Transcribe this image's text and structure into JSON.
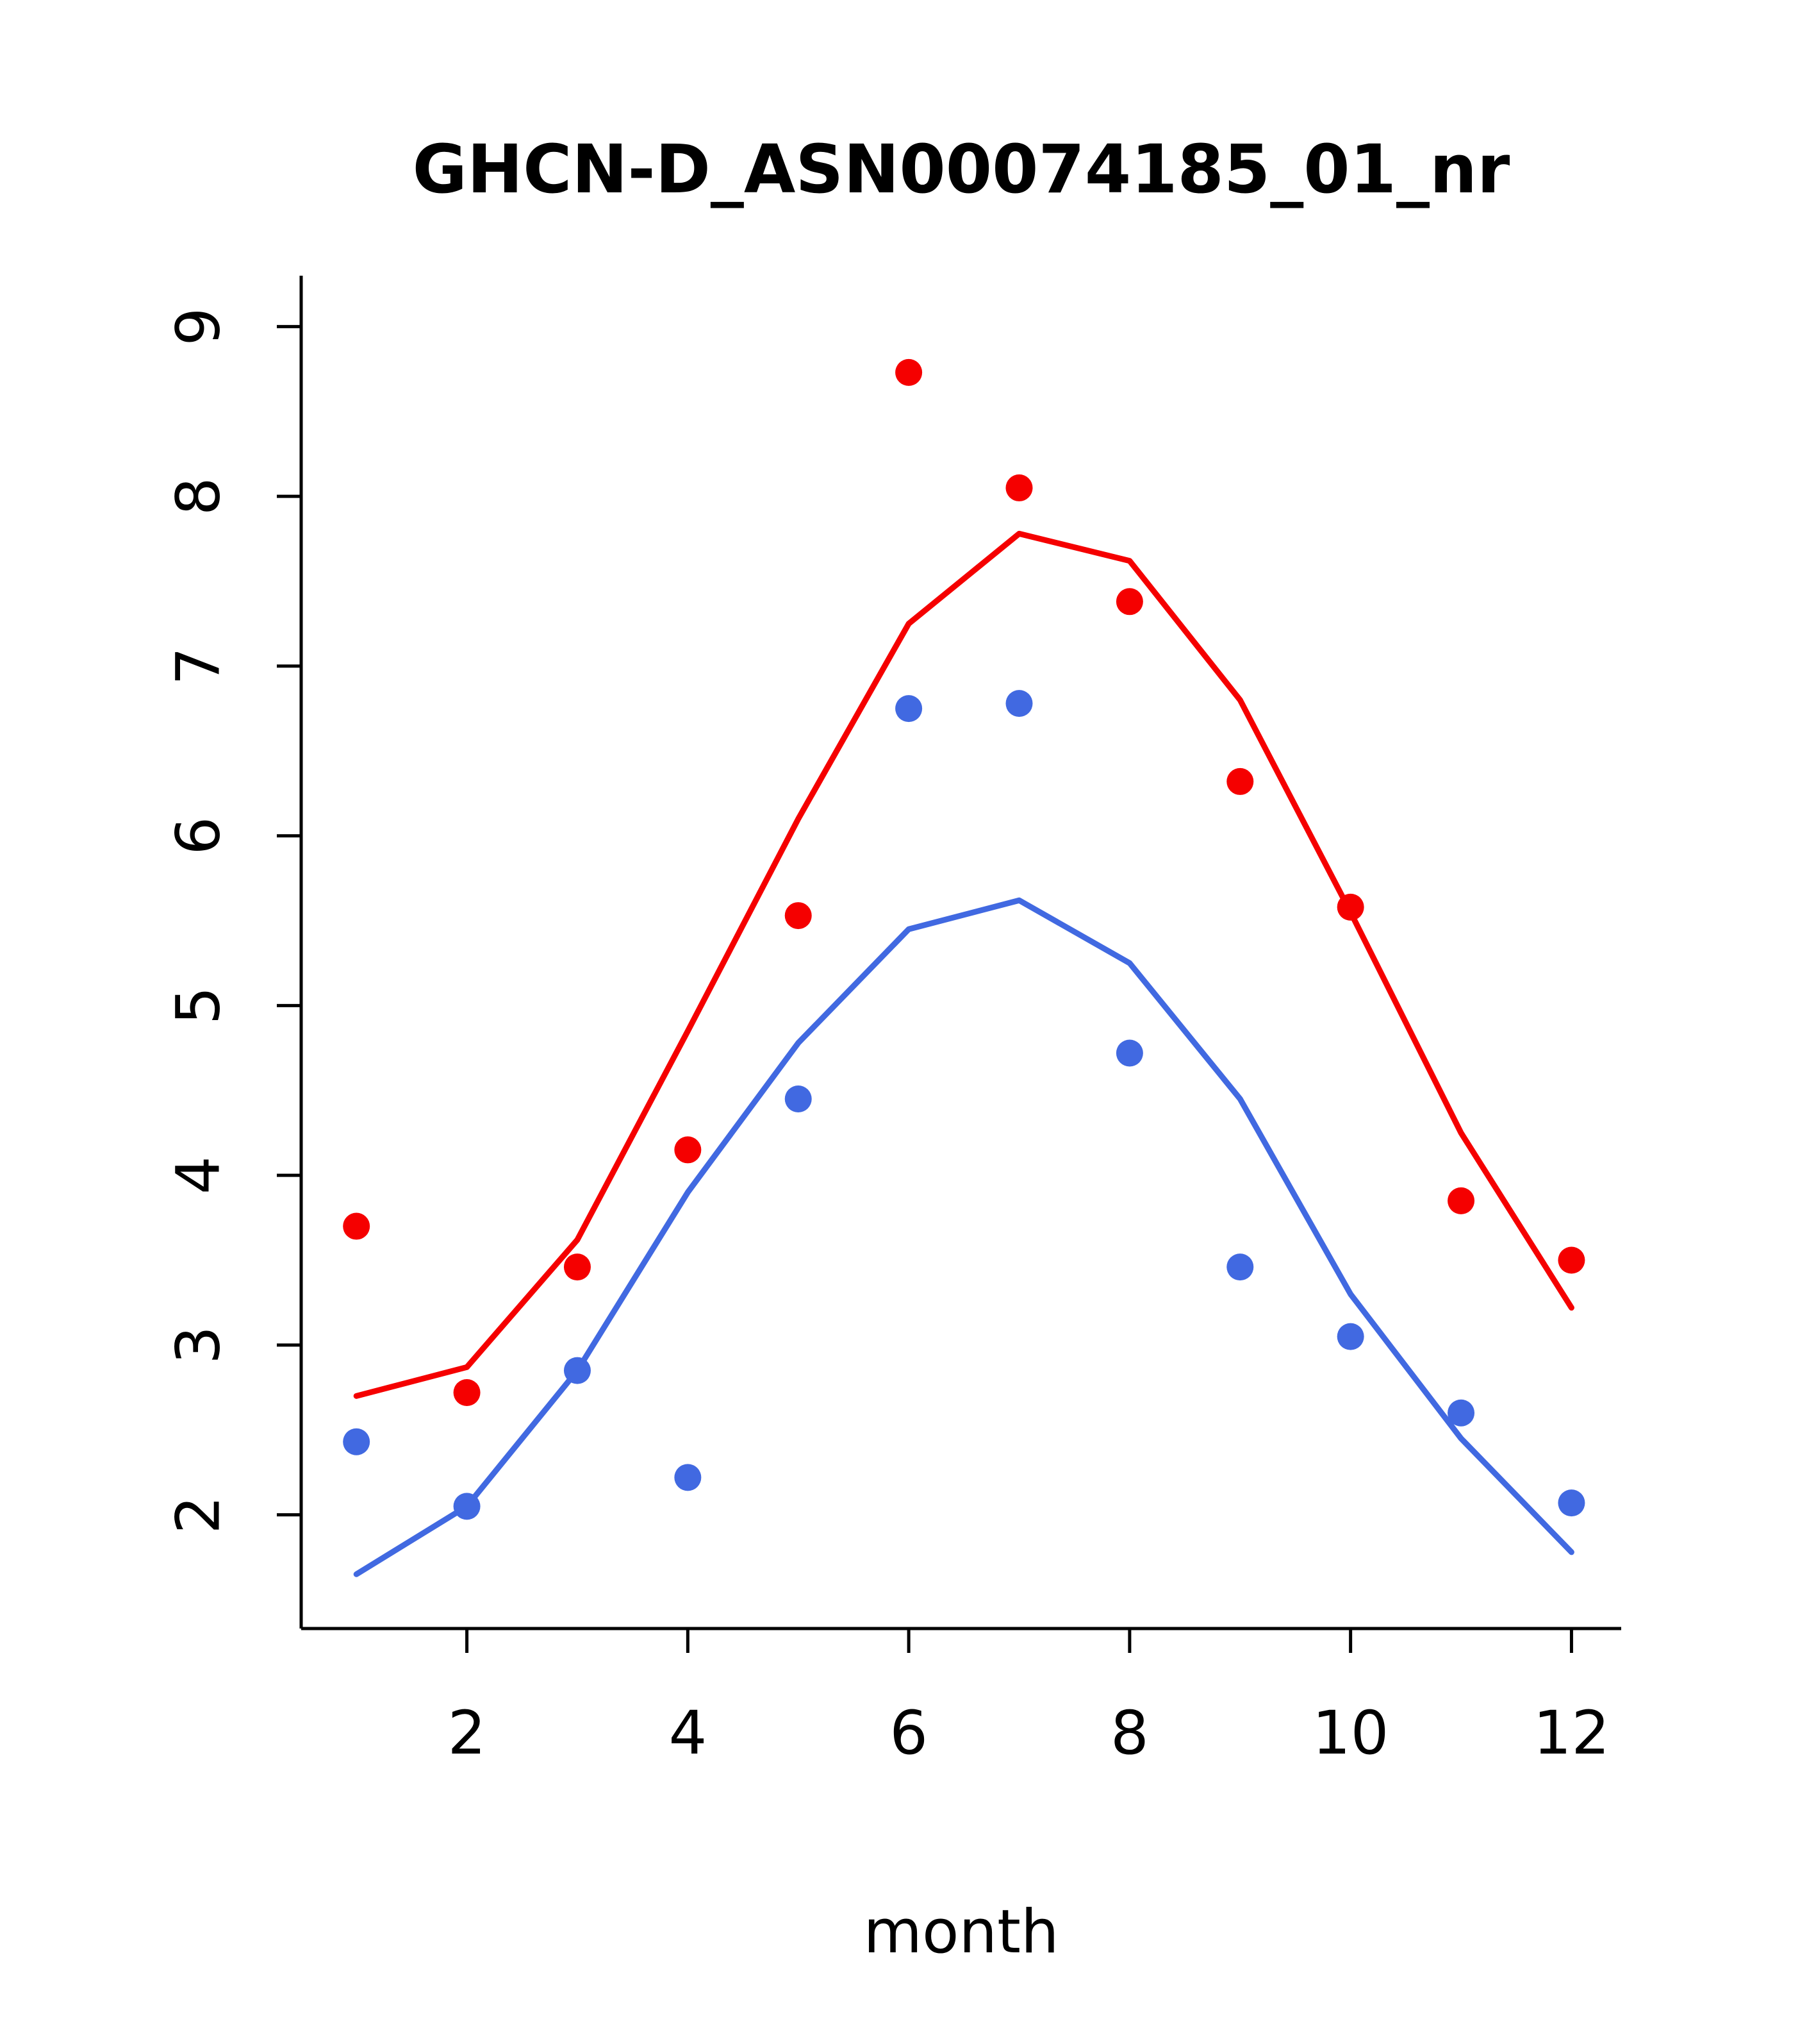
{
  "chart_data": {
    "type": "line",
    "title": "GHCN-D_ASN00074185_01_nr",
    "xlabel": "month",
    "ylabel": "",
    "x": [
      1,
      2,
      3,
      4,
      5,
      6,
      7,
      8,
      9,
      10,
      11,
      12
    ],
    "xlim": [
      0.5,
      12.45
    ],
    "ylim": [
      1.33,
      9.3
    ],
    "x_ticks": [
      2,
      4,
      6,
      8,
      10,
      12
    ],
    "y_ticks": [
      2,
      3,
      4,
      5,
      6,
      7,
      8,
      9
    ],
    "grid": false,
    "legend": "none",
    "colors": {
      "red": "#f50000",
      "blue": "#4169e1"
    },
    "series": [
      {
        "name": "red-line",
        "kind": "line",
        "color": "#f50000",
        "values": [
          2.7,
          2.87,
          3.62,
          4.85,
          6.1,
          7.25,
          7.78,
          7.62,
          6.8,
          5.55,
          4.25,
          3.22
        ]
      },
      {
        "name": "blue-line",
        "kind": "line",
        "color": "#4169e1",
        "values": [
          1.65,
          2.05,
          2.85,
          3.9,
          4.78,
          5.45,
          5.62,
          5.25,
          4.45,
          3.3,
          2.45,
          1.78
        ]
      },
      {
        "name": "red-points",
        "kind": "scatter",
        "color": "#f50000",
        "values": [
          3.7,
          2.72,
          3.46,
          4.15,
          5.53,
          8.73,
          8.05,
          7.38,
          6.32,
          5.58,
          3.85,
          3.5
        ]
      },
      {
        "name": "blue-points",
        "kind": "scatter",
        "color": "#4169e1",
        "values": [
          2.43,
          2.05,
          2.85,
          2.22,
          4.45,
          6.75,
          6.78,
          4.72,
          3.46,
          3.05,
          2.6,
          2.07
        ]
      }
    ]
  }
}
